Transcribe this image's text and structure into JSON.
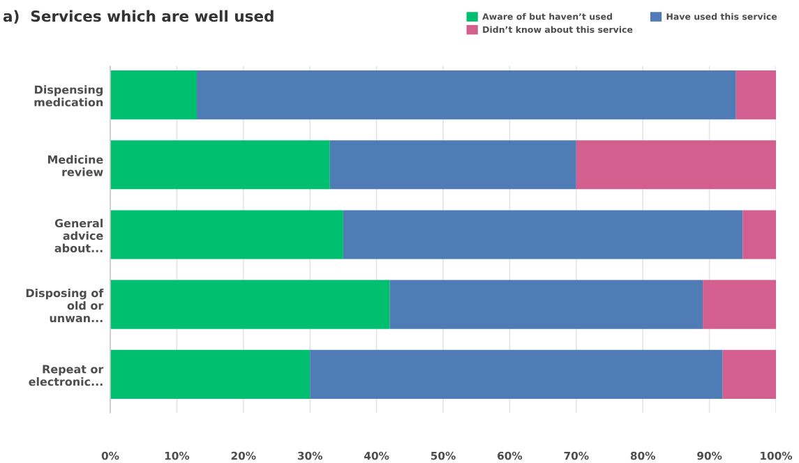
{
  "chart_data": {
    "type": "bar",
    "orientation": "horizontal",
    "stacked": true,
    "title": "a)  Services which are well used",
    "categories": [
      "Dispensing\nmedication",
      "Medicine\nreview",
      "General\nadvice\nabout...",
      "Disposing of\nold or\nunwan...",
      "Repeat or\nelectronic..."
    ],
    "series": [
      {
        "name": "Aware of but haven’t used",
        "color": "#00bf6f",
        "values": [
          13,
          33,
          35,
          42,
          30
        ]
      },
      {
        "name": "Have used this service",
        "color": "#507cb6",
        "values": [
          81,
          37,
          60,
          47,
          62
        ]
      },
      {
        "name": "Didn’t know about this service",
        "color": "#d25f90",
        "values": [
          6,
          30,
          5,
          11,
          8
        ]
      }
    ],
    "xlim": [
      0,
      100
    ],
    "xticks": [
      {
        "value": 0,
        "label": "0%"
      },
      {
        "value": 10,
        "label": "10%"
      },
      {
        "value": 20,
        "label": "20%"
      },
      {
        "value": 30,
        "label": "30%"
      },
      {
        "value": 40,
        "label": "40%"
      },
      {
        "value": 50,
        "label": "50%"
      },
      {
        "value": 60,
        "label": "60%"
      },
      {
        "value": 70,
        "label": "70%"
      },
      {
        "value": 80,
        "label": "80%"
      },
      {
        "value": 90,
        "label": "90%"
      },
      {
        "value": 100,
        "label": "100%"
      }
    ],
    "grid": "x",
    "legend": "top right"
  }
}
